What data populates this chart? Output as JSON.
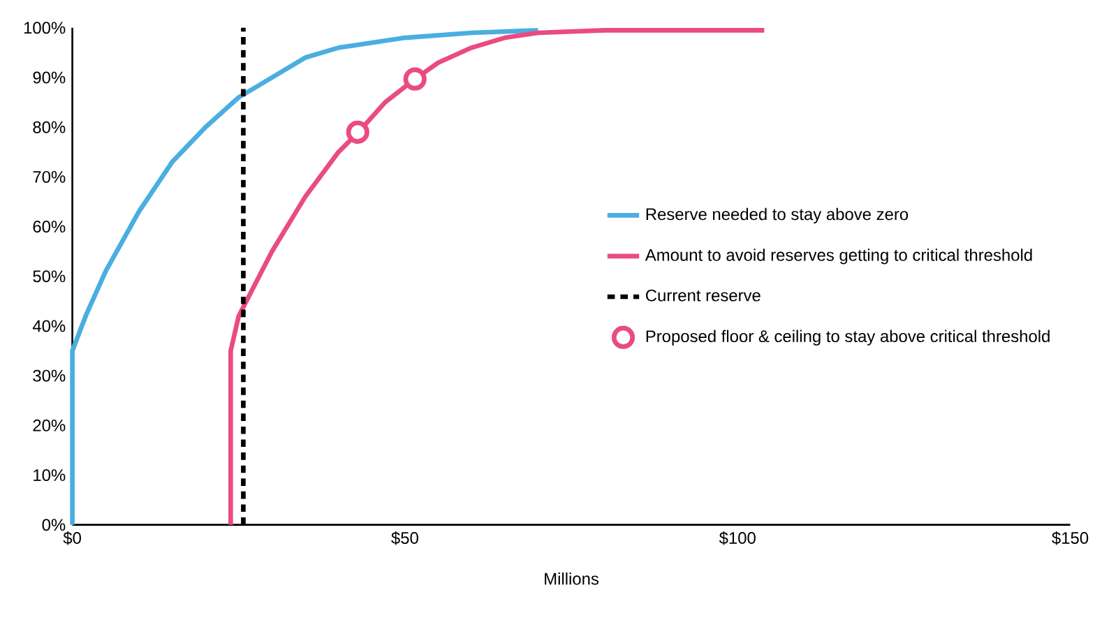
{
  "chart_data": {
    "type": "line",
    "xlabel": "Millions",
    "xlim": [
      0,
      150
    ],
    "ylim": [
      0,
      100
    ],
    "xticks": [
      {
        "value": 0,
        "label": "$0"
      },
      {
        "value": 50,
        "label": "$50"
      },
      {
        "value": 100,
        "label": "$100"
      },
      {
        "value": 150,
        "label": "$150"
      }
    ],
    "yticks": [
      {
        "value": 0,
        "label": "0%"
      },
      {
        "value": 10,
        "label": "10%"
      },
      {
        "value": 20,
        "label": "20%"
      },
      {
        "value": 30,
        "label": "30%"
      },
      {
        "value": 40,
        "label": "40%"
      },
      {
        "value": 50,
        "label": "50%"
      },
      {
        "value": 60,
        "label": "60%"
      },
      {
        "value": 70,
        "label": "70%"
      },
      {
        "value": 80,
        "label": "80%"
      },
      {
        "value": 90,
        "label": "90%"
      },
      {
        "value": 100,
        "label": "100%"
      }
    ],
    "grid": false,
    "legend": "right",
    "series": [
      {
        "name": "Reserve needed to stay above zero",
        "color": "#4aaee0",
        "x": [
          0,
          0,
          2,
          5,
          10,
          15,
          20,
          25,
          30,
          35,
          40,
          50,
          60,
          70
        ],
        "values": [
          0,
          35,
          42,
          51,
          63,
          73,
          80,
          86,
          90,
          94,
          96,
          98,
          99,
          99.5
        ]
      },
      {
        "name": "Amount to avoid reserves getting to critical threshold",
        "color": "#e94b82",
        "x": [
          23.8,
          23.8,
          25,
          30,
          35,
          40,
          43,
          47,
          51.5,
          55,
          60,
          65,
          70,
          80,
          90,
          104
        ],
        "values": [
          0,
          35,
          42,
          55,
          66,
          75,
          79,
          85,
          89.7,
          93,
          96,
          98,
          99,
          99.5,
          99.5,
          99.5
        ]
      },
      {
        "name": "Current reserve",
        "color": "#000000",
        "line_style": "dashed",
        "x": [
          25.7,
          25.7
        ],
        "values": [
          0,
          100
        ]
      },
      {
        "name": "Proposed floor & ceiling to stay above critical threshold",
        "type": "scatter",
        "marker": "circle",
        "color": "#e94b82",
        "x": [
          42.9,
          51.5
        ],
        "values": [
          79,
          89.7
        ]
      }
    ]
  }
}
